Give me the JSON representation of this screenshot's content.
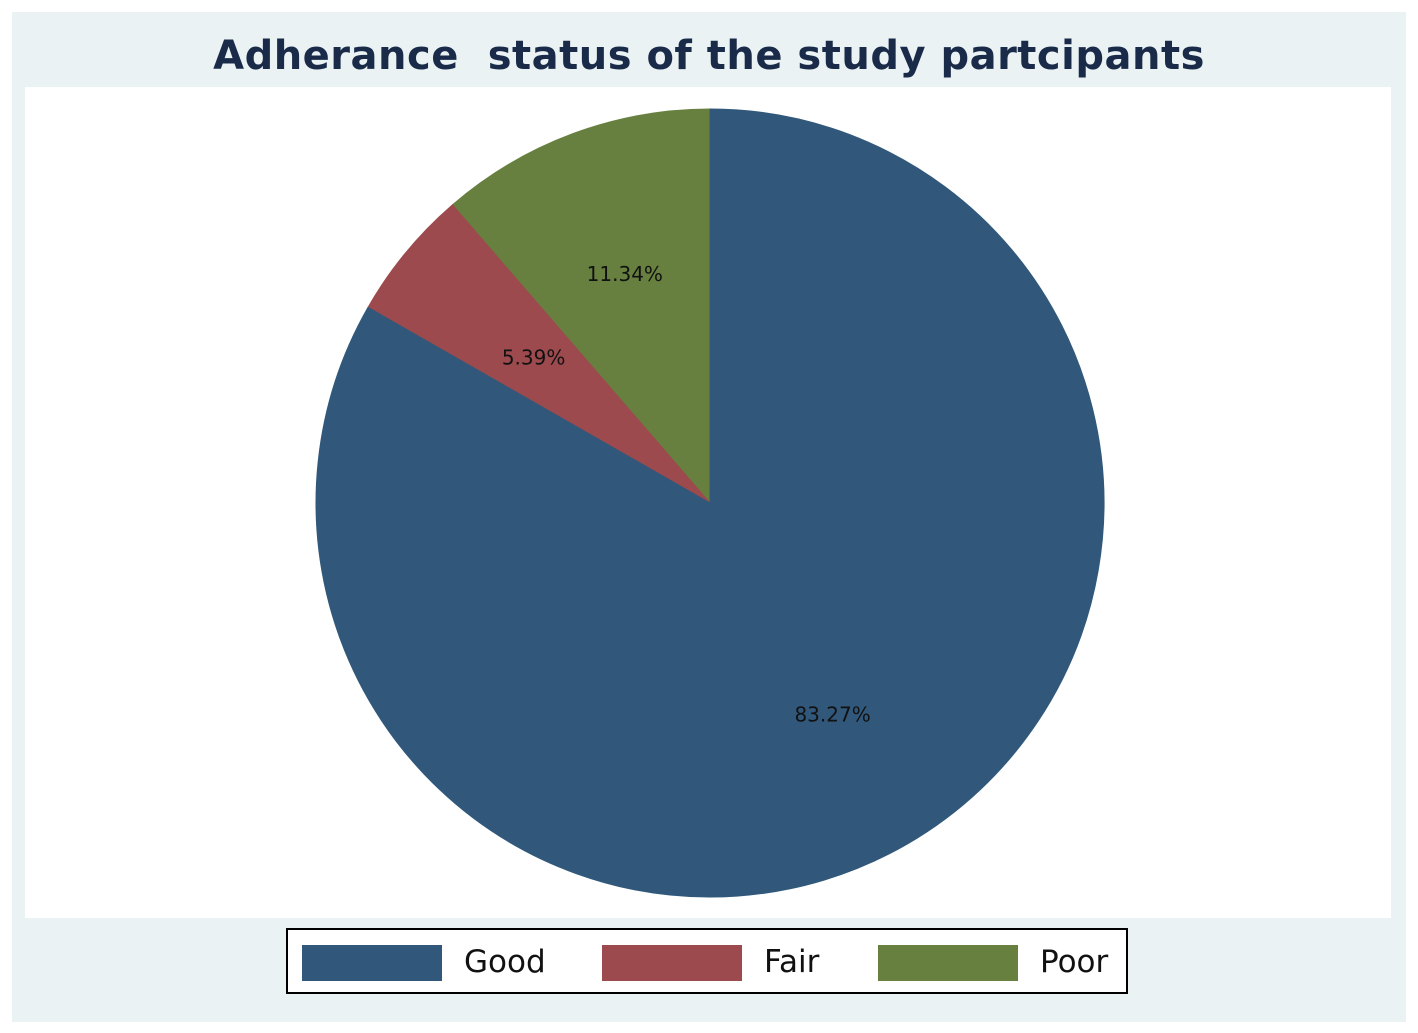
{
  "chart_data": {
    "type": "pie",
    "title": "Adherance  status of the study partcipants",
    "categories": [
      "Good",
      "Fair",
      "Poor"
    ],
    "values": [
      83.27,
      5.39,
      11.34
    ],
    "value_labels": [
      "83.27%",
      "5.39%",
      "11.34%"
    ],
    "colors": [
      "#31587a",
      "#9c4a4e",
      "#67803f"
    ],
    "start_angle_deg": 0,
    "direction": "clockwise",
    "legend": {
      "placement": "bottom",
      "entries": [
        {
          "label": "Good",
          "color": "#31587a"
        },
        {
          "label": "Fair",
          "color": "#9c4a4e"
        },
        {
          "label": "Poor",
          "color": "#67803f"
        }
      ]
    },
    "background_color": "#eaf2f3",
    "plot_background": "#ffffff",
    "title_color": "#1a2b4a"
  }
}
